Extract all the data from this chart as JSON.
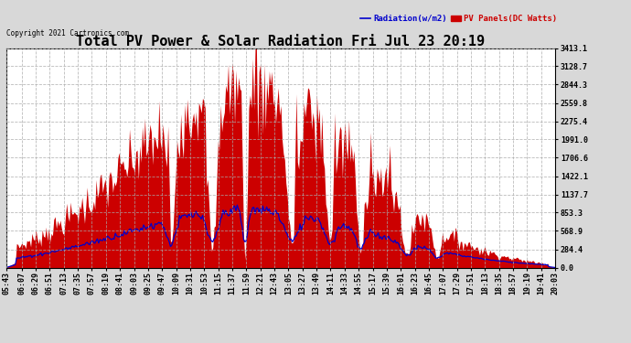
{
  "title": "Total PV Power & Solar Radiation Fri Jul 23 20:19",
  "copyright_text": "Copyright 2021 Cartronics.com",
  "legend_radiation": "Radiation(w/m2)",
  "legend_pv": "PV Panels(DC Watts)",
  "y_max": 3413.1,
  "y_min": 0.0,
  "y_ticks": [
    0.0,
    284.4,
    568.9,
    853.3,
    1137.7,
    1422.1,
    1706.6,
    1991.0,
    2275.4,
    2559.8,
    2844.3,
    3128.7,
    3413.1
  ],
  "background_color": "#d8d8d8",
  "plot_bg_color": "#ffffff",
  "pv_color": "#cc0000",
  "radiation_color": "#0000cc",
  "grid_color": "#aaaaaa",
  "title_fontsize": 11,
  "tick_fontsize": 6,
  "fig_width": 6.9,
  "fig_height": 3.75,
  "dpi": 100
}
